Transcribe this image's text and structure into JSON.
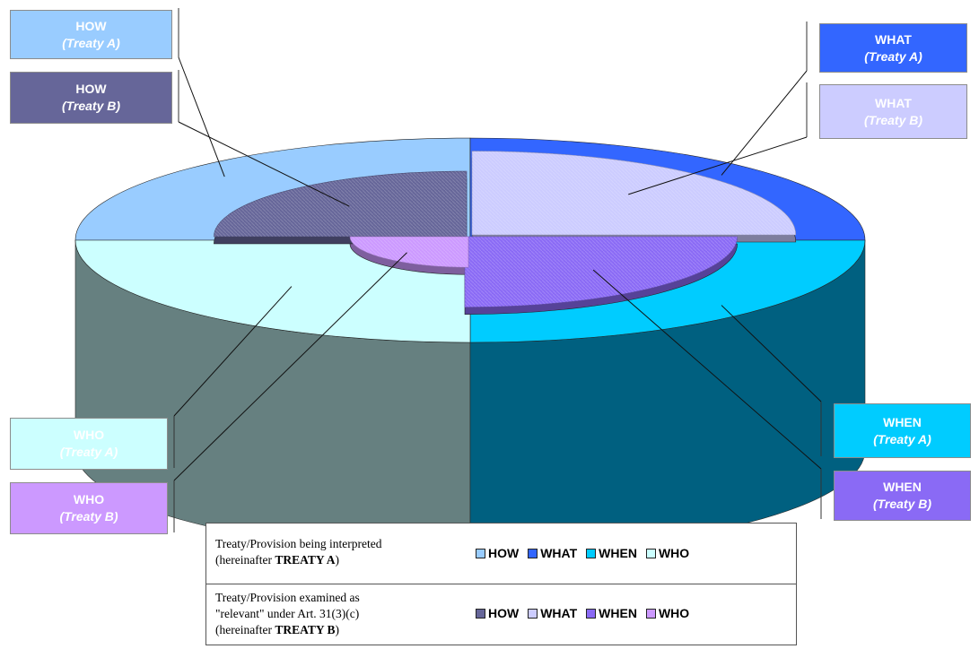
{
  "chart_data": {
    "type": "pie",
    "style": "3d-exploded",
    "categories": [
      "HOW",
      "WHAT",
      "WHEN",
      "WHO"
    ],
    "series": [
      {
        "name": "TREATY A",
        "values": [
          25,
          25,
          25,
          25
        ],
        "colors": [
          "#99ccff",
          "#3366ff",
          "#00ccff",
          "#ccffff"
        ]
      },
      {
        "name": "TREATY B",
        "values": [
          25,
          25,
          25,
          25
        ],
        "colors": [
          "#666699",
          "#ccccff",
          "#8a6af5",
          "#cc99ff"
        ]
      }
    ],
    "callouts": [
      {
        "key": "how_a",
        "title": "HOW",
        "subtitle": "(Treaty A)"
      },
      {
        "key": "how_b",
        "title": "HOW",
        "subtitle": "(Treaty B)"
      },
      {
        "key": "what_a",
        "title": "WHAT",
        "subtitle": "(Treaty A)"
      },
      {
        "key": "what_b",
        "title": "WHAT",
        "subtitle": "(Treaty B)"
      },
      {
        "key": "when_a",
        "title": "WHEN",
        "subtitle": "(Treaty A)"
      },
      {
        "key": "when_b",
        "title": "WHEN",
        "subtitle": "(Treaty B)"
      },
      {
        "key": "who_a",
        "title": "WHO",
        "subtitle": "(Treaty A)"
      },
      {
        "key": "who_b",
        "title": "WHO",
        "subtitle": "(Treaty B)"
      }
    ],
    "legend": {
      "row_a": {
        "line1": "Treaty/Provision being interpreted",
        "line2_prefix": "(hereinafter ",
        "line2_bold": "TREATY A",
        "line2_suffix": ")",
        "keys": [
          "HOW",
          "WHAT",
          "WHEN",
          "WHO"
        ]
      },
      "row_b": {
        "line1": "Treaty/Provision examined as",
        "line2": "\"relevant\" under Art. 31(3)(c)",
        "line3_prefix": "(hereinafter ",
        "line3_bold": "TREATY B",
        "line3_suffix": ")",
        "keys": [
          "HOW",
          "WHAT",
          "WHEN",
          "WHO"
        ]
      }
    }
  }
}
